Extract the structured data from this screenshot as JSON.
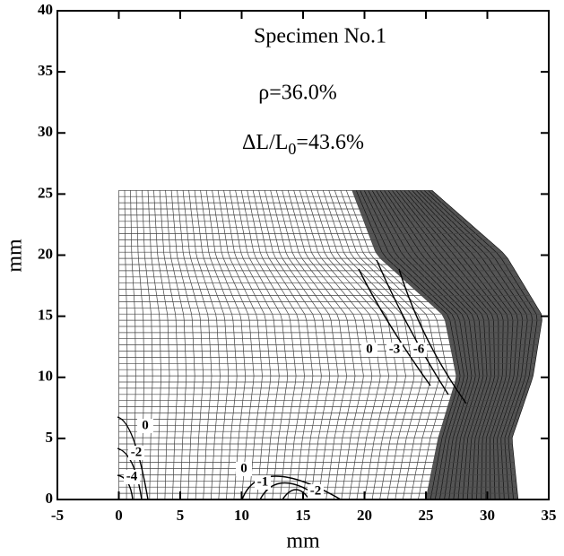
{
  "chart_data": {
    "type": "contour-mesh",
    "annotations": [
      "Specimen No.1",
      "ρ=36.0%"
    ],
    "strain_annotation": [
      "ΔL/L",
      "0",
      "=43.6%"
    ],
    "xlabel": "mm",
    "ylabel": "mm",
    "xlim": [
      -5,
      35
    ],
    "ylim": [
      0,
      40
    ],
    "xticks": [
      -5,
      0,
      5,
      10,
      15,
      20,
      25,
      30,
      35
    ],
    "yticks": [
      0,
      5,
      10,
      15,
      20,
      25,
      30,
      35,
      40
    ],
    "contour_labels": [
      "0",
      "-2",
      "-4",
      "0",
      "-1",
      "-2",
      "0",
      "-3",
      "-6"
    ]
  }
}
